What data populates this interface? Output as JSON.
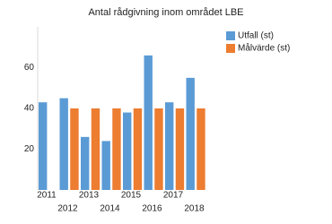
{
  "chart_data": {
    "type": "bar",
    "title": "Antal rådgivning inom området LBE",
    "categories": [
      "2011",
      "2012",
      "2013",
      "2014",
      "2015",
      "2016",
      "2017",
      "2018"
    ],
    "series": [
      {
        "name": "Utfall (st)",
        "color": "#5b9bd5",
        "values": [
          43,
          45,
          26,
          24,
          38,
          66,
          43,
          55
        ]
      },
      {
        "name": "Målvärde (st)",
        "color": "#ed7d31",
        "values": [
          null,
          40,
          40,
          40,
          40,
          40,
          40,
          40
        ]
      }
    ],
    "ylim": [
      0,
      80
    ],
    "yticks": [
      20,
      40,
      60
    ],
    "grid": false,
    "legend": "right"
  }
}
